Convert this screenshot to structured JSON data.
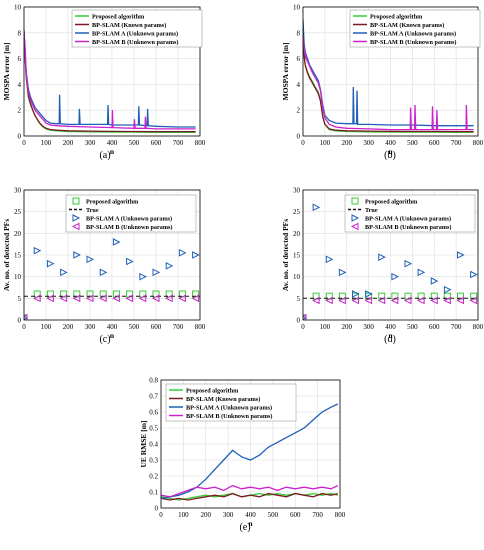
{
  "colors": {
    "proposed": "#33cc33",
    "known": "#7a1c24",
    "unknown_a": "#1f5fb8",
    "unknown_b": "#cc22cc",
    "true_line": "#111111",
    "grid": "#dddddd"
  },
  "chart_data": [
    {
      "panel": "(a)",
      "type": "line",
      "xlabel": "n",
      "ylabel": "MOSPA error [m]",
      "xlim": [
        0,
        800
      ],
      "ylim": [
        0,
        10
      ],
      "xticks": [
        0,
        100,
        200,
        300,
        400,
        500,
        600,
        700,
        800
      ],
      "yticks": [
        0,
        2,
        4,
        6,
        8,
        10
      ],
      "grid": true,
      "legend": "top-right",
      "series": [
        {
          "name": "Proposed algorithm",
          "color": "#33cc33",
          "x": [
            0,
            5,
            10,
            20,
            30,
            40,
            50,
            60,
            70,
            80,
            90,
            100,
            120,
            150,
            200,
            300,
            400,
            500,
            600,
            700,
            780
          ],
          "values": [
            7.5,
            6.0,
            4.5,
            3.0,
            2.4,
            2.0,
            1.6,
            1.3,
            1.0,
            0.8,
            0.65,
            0.55,
            0.45,
            0.4,
            0.35,
            0.32,
            0.3,
            0.3,
            0.28,
            0.28,
            0.28
          ]
        },
        {
          "name": "BP-SLAM (Known params)",
          "color": "#7a1c24",
          "x": [
            0,
            5,
            10,
            20,
            30,
            40,
            50,
            60,
            70,
            80,
            90,
            100,
            120,
            150,
            200,
            300,
            400,
            500,
            600,
            700,
            780
          ],
          "values": [
            7.8,
            6.2,
            4.7,
            3.1,
            2.5,
            2.0,
            1.6,
            1.3,
            1.05,
            0.85,
            0.7,
            0.6,
            0.5,
            0.45,
            0.4,
            0.38,
            0.36,
            0.35,
            0.34,
            0.34,
            0.34
          ]
        },
        {
          "name": "BP-SLAM A (Unknown params)",
          "color": "#1f5fb8",
          "x": [
            0,
            5,
            10,
            20,
            30,
            40,
            50,
            60,
            70,
            80,
            90,
            100,
            120,
            150,
            160,
            162,
            165,
            200,
            250,
            252,
            255,
            300,
            380,
            382,
            385,
            400,
            520,
            522,
            525,
            560,
            562,
            565,
            600,
            700,
            780
          ],
          "values": [
            8.2,
            6.8,
            5.0,
            3.6,
            3.0,
            2.6,
            2.2,
            2.0,
            1.8,
            1.6,
            1.4,
            1.2,
            1.0,
            0.95,
            0.95,
            3.2,
            0.95,
            0.9,
            0.9,
            2.1,
            0.9,
            0.9,
            0.9,
            2.4,
            0.9,
            0.85,
            0.85,
            2.3,
            0.85,
            0.8,
            2.1,
            0.8,
            0.75,
            0.7,
            0.7
          ]
        },
        {
          "name": "BP-SLAM B (Unknown params)",
          "color": "#cc22cc",
          "x": [
            0,
            5,
            10,
            20,
            30,
            40,
            50,
            60,
            70,
            80,
            90,
            100,
            120,
            150,
            200,
            300,
            400,
            402,
            405,
            500,
            502,
            505,
            550,
            552,
            555,
            600,
            700,
            780
          ],
          "values": [
            8.0,
            6.5,
            4.8,
            3.4,
            2.8,
            2.4,
            2.0,
            1.8,
            1.6,
            1.4,
            1.2,
            1.0,
            0.85,
            0.8,
            0.75,
            0.7,
            0.65,
            2.0,
            0.65,
            0.6,
            1.3,
            0.6,
            0.6,
            1.5,
            0.6,
            0.55,
            0.55,
            0.55
          ]
        }
      ]
    },
    {
      "panel": "(b)",
      "type": "line",
      "xlabel": "n",
      "ylabel": "MOSPA error [m]",
      "xlim": [
        0,
        800
      ],
      "ylim": [
        0,
        10
      ],
      "xticks": [
        0,
        100,
        200,
        300,
        400,
        500,
        600,
        700,
        800
      ],
      "yticks": [
        0,
        2,
        4,
        6,
        8,
        10
      ],
      "grid": true,
      "legend": "top-right",
      "series": [
        {
          "name": "Proposed algorithm",
          "color": "#33cc33",
          "x": [
            0,
            5,
            10,
            20,
            30,
            40,
            50,
            60,
            70,
            80,
            90,
            100,
            120,
            150,
            200,
            300,
            400,
            500,
            600,
            700,
            780
          ],
          "values": [
            7.0,
            6.2,
            5.5,
            5.0,
            4.6,
            4.3,
            4.0,
            3.7,
            3.4,
            2.8,
            1.6,
            0.9,
            0.5,
            0.4,
            0.35,
            0.32,
            0.3,
            0.3,
            0.3,
            0.28,
            0.28
          ]
        },
        {
          "name": "BP-SLAM (Known params)",
          "color": "#7a1c24",
          "x": [
            0,
            5,
            10,
            20,
            30,
            40,
            50,
            60,
            70,
            80,
            90,
            100,
            120,
            150,
            200,
            300,
            400,
            500,
            600,
            700,
            780
          ],
          "values": [
            7.2,
            6.3,
            5.5,
            4.9,
            4.5,
            4.2,
            3.9,
            3.6,
            3.3,
            2.7,
            1.5,
            0.9,
            0.55,
            0.45,
            0.4,
            0.38,
            0.36,
            0.35,
            0.35,
            0.34,
            0.34
          ]
        },
        {
          "name": "BP-SLAM A (Unknown params)",
          "color": "#1f5fb8",
          "x": [
            0,
            5,
            10,
            20,
            30,
            40,
            50,
            60,
            70,
            80,
            90,
            100,
            120,
            150,
            200,
            228,
            230,
            233,
            245,
            247,
            250,
            300,
            400,
            500,
            600,
            700,
            780
          ],
          "values": [
            9.0,
            7.2,
            6.5,
            6.0,
            5.5,
            5.2,
            4.9,
            4.6,
            4.3,
            3.6,
            2.4,
            1.6,
            1.2,
            1.0,
            0.95,
            0.95,
            3.8,
            0.95,
            0.95,
            3.5,
            0.9,
            0.9,
            0.85,
            0.85,
            0.8,
            0.8,
            0.8
          ]
        },
        {
          "name": "BP-SLAM B (Unknown params)",
          "color": "#cc22cc",
          "x": [
            0,
            5,
            10,
            20,
            30,
            40,
            50,
            60,
            70,
            80,
            90,
            100,
            120,
            150,
            200,
            300,
            400,
            490,
            492,
            495,
            510,
            512,
            515,
            590,
            592,
            595,
            610,
            612,
            615,
            745,
            747,
            750,
            780
          ],
          "values": [
            7.8,
            6.8,
            6.2,
            5.8,
            5.4,
            5.0,
            4.7,
            4.4,
            4.1,
            3.5,
            2.2,
            1.4,
            0.9,
            0.7,
            0.6,
            0.55,
            0.5,
            0.5,
            2.2,
            0.5,
            0.5,
            2.4,
            0.5,
            0.5,
            2.3,
            0.5,
            0.5,
            2.0,
            0.5,
            0.5,
            2.4,
            0.5,
            0.5
          ]
        }
      ]
    },
    {
      "panel": "(c)",
      "type": "scatter",
      "xlabel": "n",
      "ylabel": "Av. no. of detected PFs",
      "xlim": [
        0,
        800
      ],
      "ylim": [
        0,
        30
      ],
      "xticks": [
        0,
        100,
        200,
        300,
        400,
        500,
        600,
        700,
        800
      ],
      "yticks": [
        0,
        5,
        10,
        15,
        20,
        25,
        30
      ],
      "grid": true,
      "legend": "top-right",
      "series": [
        {
          "name": "Proposed algorithm",
          "marker": "square",
          "color": "#33cc33",
          "x": [
            0,
            60,
            120,
            180,
            240,
            300,
            360,
            420,
            480,
            540,
            600,
            660,
            720,
            780
          ],
          "values": [
            0.5,
            6,
            6,
            6,
            6,
            6,
            6,
            6,
            6,
            6,
            6,
            6,
            6,
            6
          ]
        },
        {
          "name": "True",
          "marker": "dashed-line",
          "color": "#111111",
          "x": [
            0,
            800
          ],
          "values": [
            5.5,
            5.5
          ]
        },
        {
          "name": "BP-SLAM A (Unknown params)",
          "marker": "triangle-right",
          "color": "#1f5fb8",
          "x": [
            0,
            60,
            120,
            180,
            240,
            300,
            360,
            420,
            480,
            540,
            600,
            660,
            720,
            780
          ],
          "values": [
            0.5,
            16,
            13,
            11,
            15,
            14,
            11,
            18,
            13.5,
            10,
            11,
            12.5,
            15.5,
            15
          ]
        },
        {
          "name": "BP-SLAM B (Unknown params)",
          "marker": "triangle-left",
          "color": "#cc22cc",
          "x": [
            0,
            60,
            120,
            180,
            240,
            300,
            360,
            420,
            480,
            540,
            600,
            660,
            720,
            780
          ],
          "values": [
            0.5,
            5,
            5,
            5,
            5,
            5,
            5,
            5,
            5,
            5,
            5,
            5,
            5,
            5
          ]
        }
      ]
    },
    {
      "panel": "(d)",
      "type": "scatter",
      "xlabel": "n",
      "ylabel": "Av. no. of detected PFs",
      "xlim": [
        0,
        800
      ],
      "ylim": [
        0,
        30
      ],
      "xticks": [
        0,
        100,
        200,
        300,
        400,
        500,
        600,
        700,
        800
      ],
      "yticks": [
        0,
        5,
        10,
        15,
        20,
        25,
        30
      ],
      "grid": true,
      "legend": "top-right",
      "series": [
        {
          "name": "Proposed algorithm",
          "marker": "square",
          "color": "#33cc33",
          "x": [
            0,
            60,
            120,
            180,
            240,
            300,
            360,
            420,
            480,
            540,
            600,
            660,
            720,
            780
          ],
          "values": [
            0.5,
            5.5,
            5.5,
            5.5,
            5.5,
            5.5,
            5.5,
            5.5,
            5.5,
            5.5,
            5.5,
            5.5,
            5.5,
            5.5
          ]
        },
        {
          "name": "True",
          "marker": "dashed-line",
          "color": "#111111",
          "x": [
            0,
            800
          ],
          "values": [
            5,
            5
          ]
        },
        {
          "name": "BP-SLAM A (Unknown params)",
          "marker": "triangle-right",
          "color": "#1f5fb8",
          "x": [
            0,
            60,
            120,
            180,
            240,
            300,
            360,
            420,
            480,
            540,
            600,
            660,
            720,
            780
          ],
          "values": [
            0.5,
            26,
            14,
            11,
            6,
            6,
            14.5,
            10,
            13,
            11,
            9,
            7,
            15,
            10.5
          ]
        },
        {
          "name": "BP-SLAM B (Unknown params)",
          "marker": "triangle-left",
          "color": "#cc22cc",
          "x": [
            0,
            60,
            120,
            180,
            240,
            300,
            360,
            420,
            480,
            540,
            600,
            660,
            720,
            780
          ],
          "values": [
            0.5,
            4.5,
            4.5,
            4.5,
            4.5,
            4.5,
            4.5,
            4.5,
            4.5,
            4.5,
            4.5,
            4.5,
            4.5,
            4.5
          ]
        }
      ]
    },
    {
      "panel": "(e)",
      "type": "line",
      "xlabel": "n",
      "ylabel": "UE RMSE [m]",
      "xlim": [
        0,
        800
      ],
      "ylim": [
        0,
        0.8
      ],
      "xticks": [
        0,
        100,
        200,
        300,
        400,
        500,
        600,
        700,
        800
      ],
      "yticks": [
        0,
        0.1,
        0.2,
        0.3,
        0.4,
        0.5,
        0.6,
        0.7,
        0.8
      ],
      "grid": true,
      "legend": "top-left",
      "series": [
        {
          "name": "Proposed algorithm",
          "color": "#33cc33",
          "x": [
            0,
            40,
            80,
            120,
            160,
            200,
            240,
            280,
            320,
            360,
            400,
            440,
            480,
            520,
            560,
            600,
            640,
            680,
            720,
            760,
            790
          ],
          "values": [
            0.07,
            0.06,
            0.05,
            0.06,
            0.07,
            0.08,
            0.07,
            0.08,
            0.09,
            0.07,
            0.08,
            0.09,
            0.08,
            0.09,
            0.08,
            0.09,
            0.08,
            0.09,
            0.08,
            0.09,
            0.08
          ]
        },
        {
          "name": "BP-SLAM (Known params)",
          "color": "#7a1c24",
          "x": [
            0,
            40,
            80,
            120,
            160,
            200,
            240,
            280,
            320,
            360,
            400,
            440,
            480,
            520,
            560,
            600,
            640,
            680,
            720,
            760,
            790
          ],
          "values": [
            0.06,
            0.05,
            0.06,
            0.05,
            0.06,
            0.07,
            0.08,
            0.07,
            0.09,
            0.07,
            0.08,
            0.07,
            0.09,
            0.08,
            0.07,
            0.09,
            0.08,
            0.07,
            0.09,
            0.08,
            0.09
          ]
        },
        {
          "name": "BP-SLAM A (Unknown params)",
          "color": "#1f5fb8",
          "x": [
            0,
            40,
            80,
            120,
            160,
            200,
            240,
            280,
            320,
            340,
            360,
            400,
            440,
            480,
            520,
            560,
            600,
            640,
            680,
            720,
            760,
            790
          ],
          "values": [
            0.06,
            0.07,
            0.08,
            0.1,
            0.13,
            0.18,
            0.24,
            0.3,
            0.36,
            0.34,
            0.32,
            0.3,
            0.33,
            0.38,
            0.41,
            0.44,
            0.47,
            0.5,
            0.55,
            0.6,
            0.63,
            0.65
          ]
        },
        {
          "name": "BP-SLAM B (Unknown params)",
          "color": "#cc22cc",
          "x": [
            0,
            40,
            80,
            120,
            160,
            200,
            240,
            280,
            320,
            360,
            400,
            440,
            480,
            520,
            560,
            600,
            640,
            680,
            720,
            760,
            790
          ],
          "values": [
            0.08,
            0.07,
            0.09,
            0.11,
            0.13,
            0.12,
            0.13,
            0.11,
            0.14,
            0.12,
            0.13,
            0.12,
            0.13,
            0.11,
            0.13,
            0.12,
            0.13,
            0.12,
            0.13,
            0.12,
            0.14
          ]
        }
      ]
    }
  ]
}
